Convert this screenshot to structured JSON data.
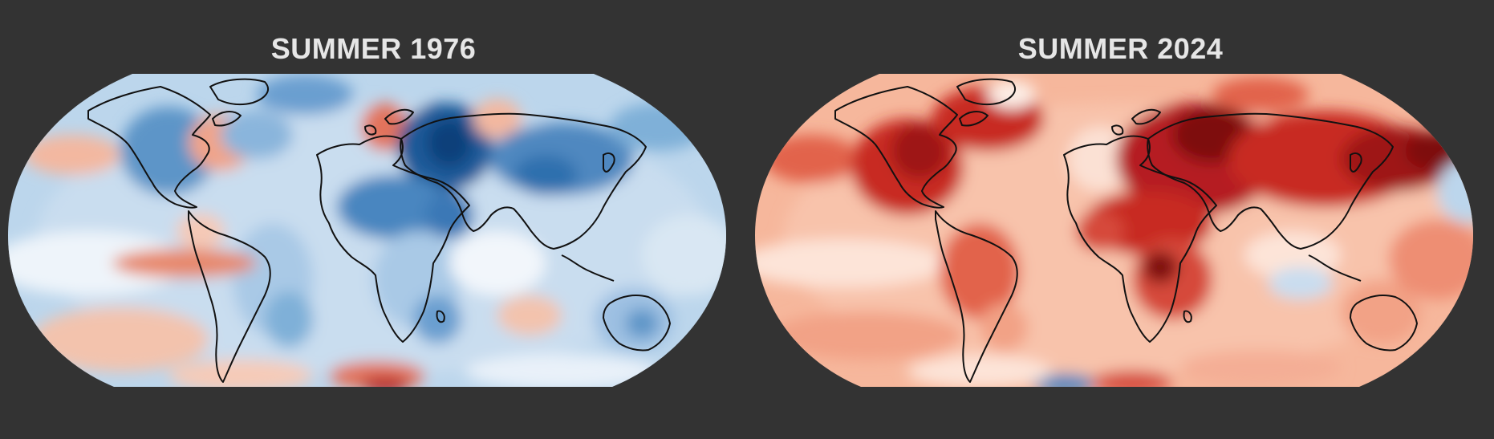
{
  "panels": [
    {
      "title": "SUMMER 1976",
      "description": "Global temperature anomaly map, predominantly cool (blue) with scattered warm (red) patches",
      "palette": {
        "base": "#bcd6ec",
        "light": "#e9f1f9",
        "mid": "#7fb0d8",
        "deep": "#2f6fae",
        "darkest": "#0d3f7a",
        "warm": "#f0a48a",
        "warm_deep": "#d64a3a"
      }
    },
    {
      "title": "SUMMER 2024",
      "description": "Global temperature anomaly map, predominantly warm (red) with deep red over land",
      "palette": {
        "base": "#f6b79c",
        "light": "#fde4d8",
        "mid": "#ea7b5e",
        "deep": "#c82a24",
        "darkest": "#7e0c0f",
        "cool": "#bcd6ec",
        "cool_deep": "#4a86c0"
      }
    }
  ]
}
